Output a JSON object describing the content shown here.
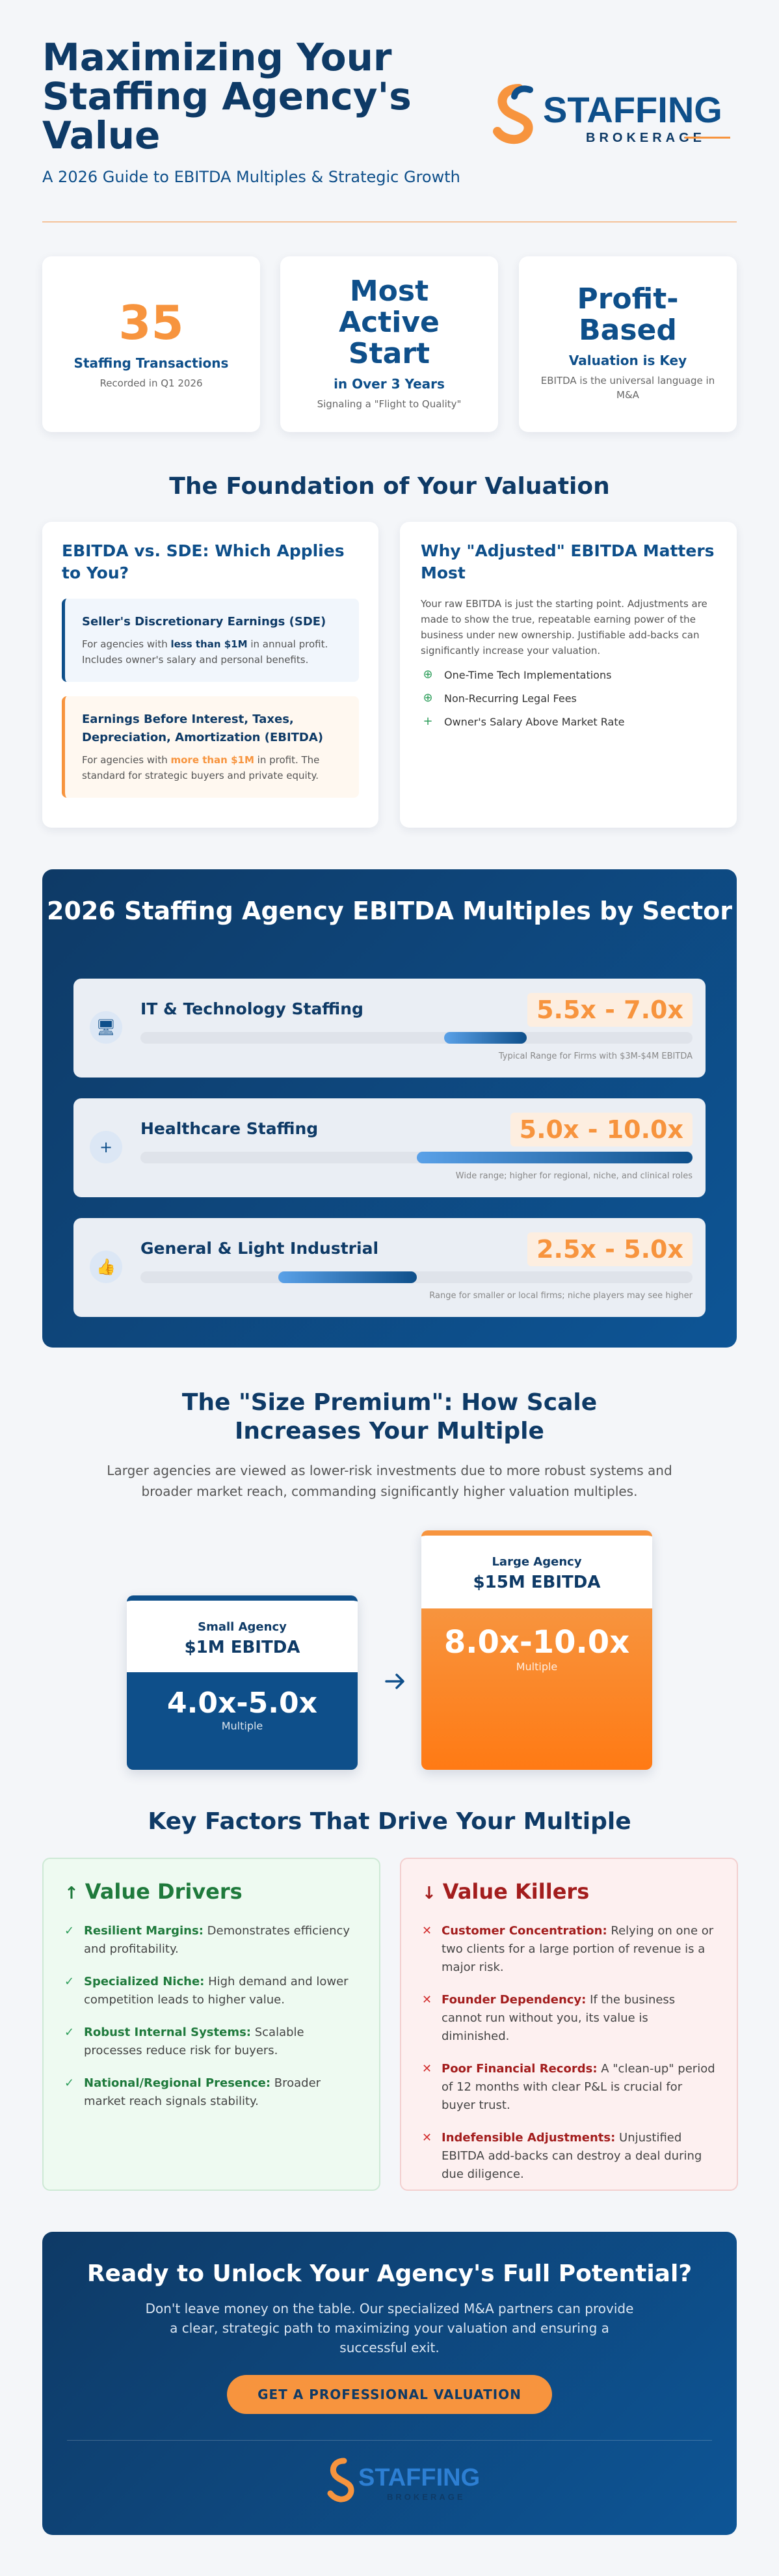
{
  "header": {
    "title": "Maximizing Your Staffing Agency's Value",
    "subtitle": "A 2026 Guide to EBITDA Multiples & Strategic Growth",
    "logo_main": "STAFFING",
    "logo_sub": "BROKERAGE"
  },
  "stats": [
    {
      "value": "35",
      "label": "Staffing Transactions",
      "note": "Recorded in Q1 2026"
    },
    {
      "value": "Most Active Start",
      "label": "in Over 3 Years",
      "note": "Signaling a \"Flight to Quality\""
    },
    {
      "value": "Profit-Based",
      "label": "Valuation is Key",
      "note": "EBITDA is the universal language in M&A"
    }
  ],
  "foundation": {
    "title": "The Foundation of Your Valuation",
    "left": {
      "title": "EBITDA vs. SDE: Which Applies to You?",
      "sde_title": "Seller's Discretionary Earnings (SDE)",
      "sde_pre": "For agencies with ",
      "sde_bold": "less than $1M",
      "sde_post": " in annual profit. Includes owner's salary and personal benefits.",
      "ebitda_title": "Earnings Before Interest, Taxes, Depreciation, Amortization (EBITDA)",
      "ebitda_pre": "For agencies with ",
      "ebitda_bold": "more than $1M",
      "ebitda_post": " in profit. The standard for strategic buyers and private equity."
    },
    "right": {
      "title": "Why \"Adjusted\" EBITDA Matters Most",
      "body": "Your raw EBITDA is just the starting point. Adjustments are made to show the true, repeatable earning power of the business under new ownership. Justifiable add-backs can significantly increase your valuation.",
      "items": [
        "One-Time Tech Implementations",
        "Non-Recurring Legal Fees",
        "Owner's Salary Above Market Rate"
      ]
    }
  },
  "multiples": {
    "title": "2026 Staffing Agency EBITDA Multiples by Sector",
    "rows": [
      {
        "name": "IT & Technology Staffing",
        "range": "5.5x - 7.0x",
        "note": "Typical Range for Firms with $3M-$4M EBITDA",
        "icon": "monitor-icon",
        "low": 5.5,
        "high": 7.0
      },
      {
        "name": "Healthcare Staffing",
        "range": "5.0x - 10.0x",
        "note": "Wide range; higher for regional, niche, and clinical roles",
        "icon": "plus-icon",
        "low": 5.0,
        "high": 10.0
      },
      {
        "name": "General & Light Industrial",
        "range": "2.5x - 5.0x",
        "note": "Range for smaller or local firms; niche players may see higher",
        "icon": "thumbs-up-icon",
        "low": 2.5,
        "high": 5.0
      }
    ]
  },
  "size": {
    "title": "The \"Size Premium\": How Scale Increases Your Multiple",
    "body": "Larger agencies are viewed as lower-risk investments due to more robust systems and broader market reach, commanding significantly higher valuation multiples.",
    "small": {
      "label": "Small Agency",
      "ebitda": "$1M EBITDA",
      "multiple": "4.0x-5.0x",
      "multiple_label": "Multiple"
    },
    "large": {
      "label": "Large Agency",
      "ebitda": "$15M EBITDA",
      "multiple": "8.0x-10.0x",
      "multiple_label": "Multiple"
    }
  },
  "factors": {
    "title": "Key Factors That Drive Your Multiple",
    "drivers_title": "Value Drivers",
    "drivers": [
      {
        "key": "Resilient Margins:",
        "text": " Demonstrates efficiency and profitability."
      },
      {
        "key": "Specialized Niche:",
        "text": " High demand and lower competition leads to higher value."
      },
      {
        "key": "Robust Internal Systems:",
        "text": " Scalable processes reduce risk for buyers."
      },
      {
        "key": "National/Regional Presence:",
        "text": " Broader market reach signals stability."
      }
    ],
    "killers_title": "Value Killers",
    "killers": [
      {
        "key": "Customer Concentration:",
        "text": " Relying on one or two clients for a large portion of revenue is a major risk."
      },
      {
        "key": "Founder Dependency:",
        "text": " If the business cannot run without you, its value is diminished."
      },
      {
        "key": "Poor Financial Records:",
        "text": " A \"clean-up\" period of 12 months with clear P&L is crucial for buyer trust."
      },
      {
        "key": "Indefensible Adjustments:",
        "text": " Unjustified EBITDA add-backs can destroy a deal during due diligence."
      }
    ]
  },
  "cta": {
    "title": "Ready to Unlock Your Agency's Full Potential?",
    "body": "Don't leave money on the table. Our specialized M&A partners can provide a clear, strategic path to maximizing your valuation and ensuring a successful exit.",
    "button": "GET A PROFESSIONAL VALUATION"
  },
  "colors": {
    "navy": "#0e3a66",
    "blue": "#0e4f8a",
    "orange": "#f7943e",
    "green": "#2e9e5b",
    "red": "#a31d1d"
  }
}
